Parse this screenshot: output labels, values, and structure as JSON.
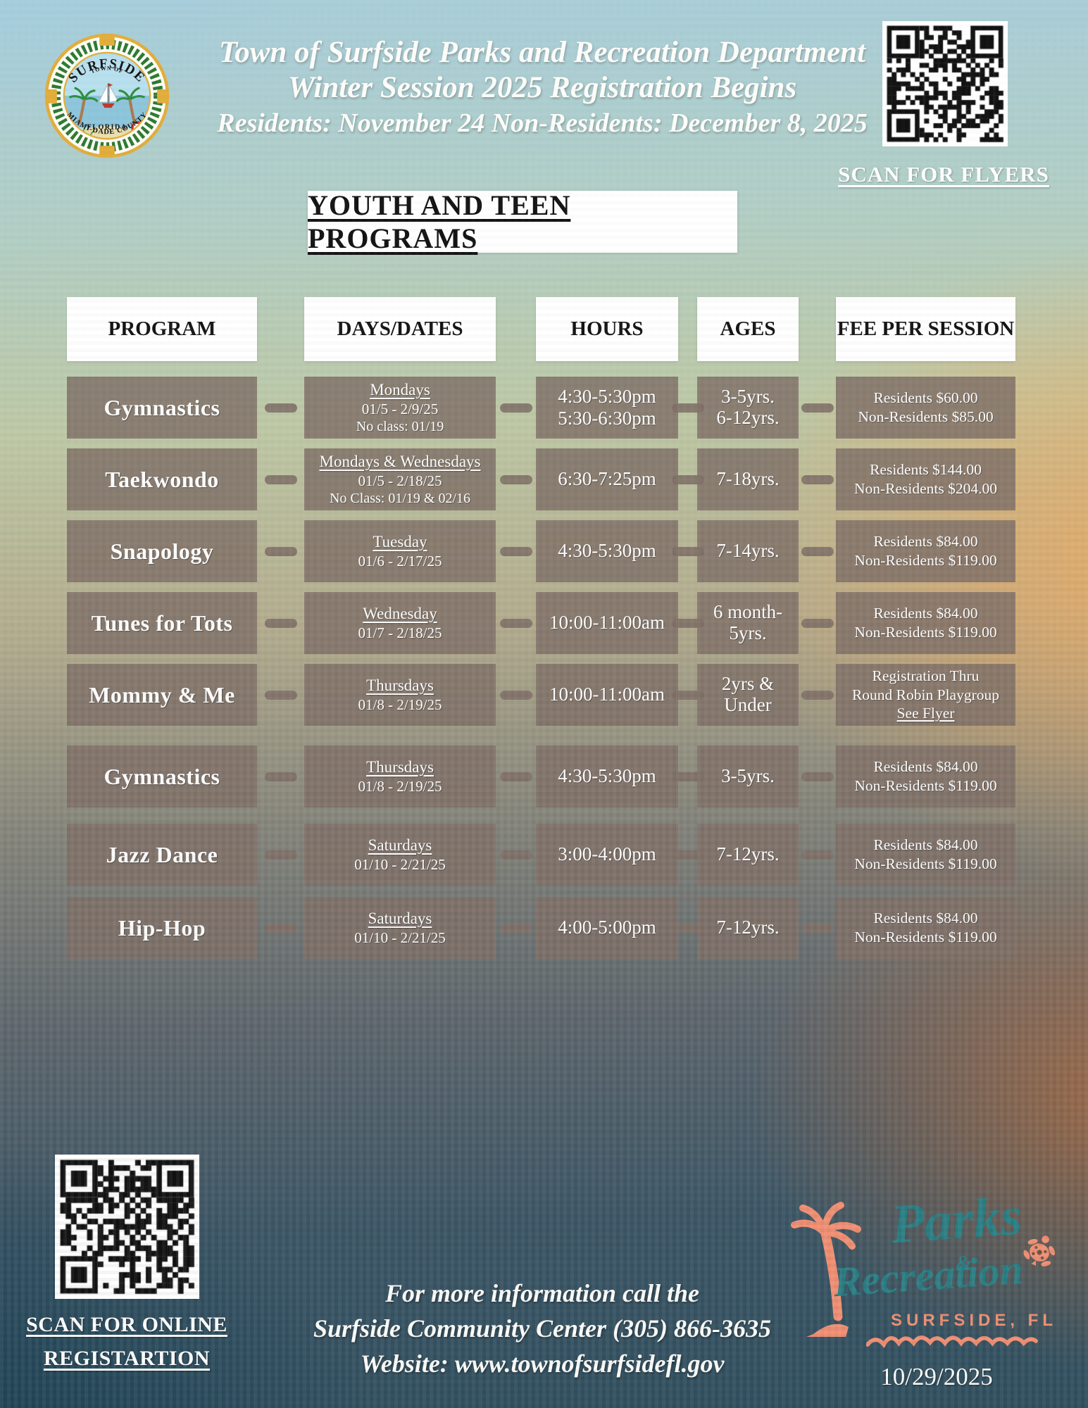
{
  "header": {
    "title_line1": "Town of Surfside Parks and Recreation Department",
    "title_line2": "Winter Session 2025 Registration Begins",
    "title_line3": "Residents: November 24 Non-Residents: December 8, 2025",
    "scan_flyers_label": "SCAN FOR FLYERS"
  },
  "seal": {
    "top": "TOWN OF",
    "name": "SURFSIDE",
    "state": "FLORIDA",
    "county": "MIAMI-DADE COUNTY"
  },
  "section": {
    "title": "YOUTH AND TEEN PROGRAMS"
  },
  "table": {
    "columns": [
      "PROGRAM",
      "DAYS/DATES",
      "HOURS",
      "AGES",
      "FEE PER SESSION"
    ],
    "rows": [
      {
        "program": "Gymnastics",
        "days": "Mondays",
        "dates": "01/5 - 2/9/25",
        "note": "No class: 01/19",
        "hours": [
          "4:30-5:30pm",
          "5:30-6:30pm"
        ],
        "ages": [
          "3-5yrs.",
          "6-12yrs."
        ],
        "fee": [
          "Residents $60.00",
          "Non-Residents $85.00"
        ],
        "fee_link": ""
      },
      {
        "program": "Taekwondo",
        "days": "Mondays & Wednesdays",
        "dates": "01/5 - 2/18/25",
        "note": "No Class: 01/19 & 02/16",
        "hours": [
          "6:30-7:25pm"
        ],
        "ages": [
          "7-18yrs."
        ],
        "fee": [
          "Residents $144.00",
          "Non-Residents $204.00"
        ],
        "fee_link": ""
      },
      {
        "program": "Snapology",
        "days": "Tuesday",
        "dates": "01/6 - 2/17/25",
        "note": "",
        "hours": [
          "4:30-5:30pm"
        ],
        "ages": [
          "7-14yrs."
        ],
        "fee": [
          "Residents $84.00",
          "Non-Residents $119.00"
        ],
        "fee_link": ""
      },
      {
        "program": "Tunes for Tots",
        "days": "Wednesday",
        "dates": "01/7 - 2/18/25",
        "note": "",
        "hours": [
          "10:00-11:00am"
        ],
        "ages": [
          "6 month-",
          "5yrs."
        ],
        "fee": [
          "Residents $84.00",
          "Non-Residents $119.00"
        ],
        "fee_link": ""
      },
      {
        "program": "Mommy & Me",
        "days": "Thursdays",
        "dates": "01/8 - 2/19/25",
        "note": "",
        "hours": [
          "10:00-11:00am"
        ],
        "ages": [
          "2yrs &",
          "Under"
        ],
        "fee": [
          "Registration Thru",
          "Round Robin Playgroup"
        ],
        "fee_link": "See Flyer"
      },
      {
        "program": "Gymnastics",
        "days": "Thursdays",
        "dates": "01/8 - 2/19/25",
        "note": "",
        "hours": [
          "4:30-5:30pm"
        ],
        "ages": [
          "3-5yrs."
        ],
        "fee": [
          "Residents $84.00",
          "Non-Residents $119.00"
        ],
        "fee_link": ""
      },
      {
        "program": "Jazz Dance",
        "days": "Saturdays",
        "dates": "01/10 - 2/21/25",
        "note": "",
        "hours": [
          "3:00-4:00pm"
        ],
        "ages": [
          "7-12yrs."
        ],
        "fee": [
          "Residents $84.00",
          "Non-Residents $119.00"
        ],
        "fee_link": ""
      },
      {
        "program": "Hip-Hop",
        "days": "Saturdays",
        "dates": "01/10 - 2/21/25",
        "note": "",
        "hours": [
          "4:00-5:00pm"
        ],
        "ages": [
          "7-12yrs."
        ],
        "fee": [
          "Residents $84.00",
          "Non-Residents $119.00"
        ],
        "fee_link": ""
      }
    ]
  },
  "footer": {
    "scan_online_line1": "SCAN FOR ONLINE",
    "scan_online_line2": "REGISTARTION",
    "info_line1": "For more information call the",
    "info_line2": "Surfside Community Center (305) 866-3635",
    "info_line3": "Website: www.townofsurfsidefl.gov",
    "logo_word1": "Parks",
    "logo_amp": "&",
    "logo_word2": "Recreation",
    "logo_location": "SURFSIDE, FL",
    "date": "10/29/2025"
  },
  "colors": {
    "box_taupe": "#807068",
    "accent_coral": "#f08f73",
    "accent_teal": "#2a7f84",
    "bottom_teal": "#2b4f60",
    "orange_glow": "#e0a05e"
  }
}
